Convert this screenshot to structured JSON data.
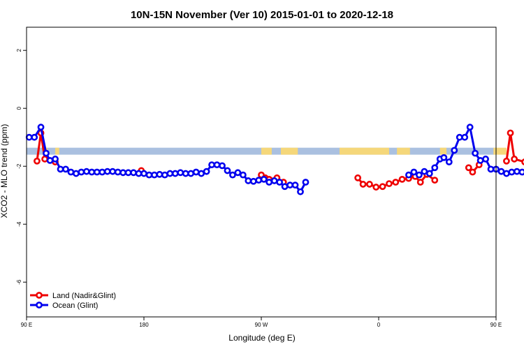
{
  "chart_data": {
    "type": "line",
    "title": "10N-15N November (Ver 10)   2015-01-01 to 2020-12-18",
    "xlabel": "Longitude (deg E)",
    "ylabel": "XCO2 - MLO trend (ppm)",
    "xlim": [
      90,
      450
    ],
    "ylim": [
      -7.2,
      2.8
    ],
    "x_ticks": [
      {
        "value": 90,
        "label": "90 E"
      },
      {
        "value": 180,
        "label": "180"
      },
      {
        "value": 270,
        "label": "90 W"
      },
      {
        "value": 360,
        "label": "0"
      },
      {
        "value": 450,
        "label": "90 E"
      },
      {
        "value": 540,
        "label": "180"
      }
    ],
    "y_ticks": [
      2,
      0,
      -2,
      -4,
      -6
    ],
    "colors": {
      "land": "#ee0000",
      "ocean": "#0000ee",
      "ocean_band": "#aac0e0",
      "land_band": "#f5d77a"
    },
    "series": [
      {
        "name": "Land (Nadir&Glint)",
        "color": "#ee0000",
        "segments": [
          [
            [
              98,
              -1.82
            ],
            [
              101,
              -0.85
            ],
            [
              104,
              -1.75
            ],
            [
              112,
              -1.85
            ]
          ],
          [
            [
              178,
              -2.15
            ]
          ],
          [
            [
              270,
              -2.3
            ],
            [
              273,
              -2.4
            ],
            [
              276,
              -2.45
            ],
            [
              282,
              -2.4
            ],
            [
              287,
              -2.55
            ]
          ],
          [
            [
              344,
              -2.4
            ],
            [
              348,
              -2.62
            ],
            [
              353,
              -2.62
            ],
            [
              358,
              -2.72
            ],
            [
              363,
              -2.7
            ],
            [
              368,
              -2.6
            ],
            [
              373,
              -2.55
            ],
            [
              378,
              -2.45
            ],
            [
              383,
              -2.42
            ],
            [
              388,
              -2.35
            ],
            [
              392,
              -2.55
            ],
            [
              397,
              -2.28
            ],
            [
              403,
              -2.48
            ]
          ],
          [
            [
              429,
              -2.05
            ],
            [
              432,
              -2.2
            ],
            [
              437,
              -1.95
            ]
          ],
          [
            [
              458,
              -1.82
            ],
            [
              461,
              -0.85
            ],
            [
              464,
              -1.75
            ],
            [
              472,
              -1.85
            ],
            [
              478,
              -2.12
            ]
          ]
        ]
      },
      {
        "name": "Ocean (Glint)",
        "color": "#0000ee",
        "segments": [
          [
            [
              92,
              -1.0
            ],
            [
              96,
              -1.0
            ],
            [
              101,
              -0.65
            ],
            [
              105,
              -1.55
            ],
            [
              108,
              -1.8
            ],
            [
              112,
              -1.75
            ],
            [
              116,
              -2.1
            ],
            [
              120,
              -2.1
            ],
            [
              124,
              -2.2
            ],
            [
              128,
              -2.25
            ],
            [
              132,
              -2.2
            ],
            [
              136,
              -2.18
            ],
            [
              140,
              -2.2
            ],
            [
              144,
              -2.2
            ],
            [
              148,
              -2.2
            ],
            [
              152,
              -2.18
            ],
            [
              156,
              -2.18
            ],
            [
              160,
              -2.2
            ],
            [
              164,
              -2.22
            ],
            [
              168,
              -2.22
            ],
            [
              172,
              -2.22
            ],
            [
              176,
              -2.25
            ],
            [
              180,
              -2.25
            ],
            [
              184,
              -2.3
            ],
            [
              188,
              -2.3
            ],
            [
              192,
              -2.28
            ],
            [
              196,
              -2.3
            ],
            [
              200,
              -2.25
            ],
            [
              204,
              -2.25
            ],
            [
              208,
              -2.22
            ],
            [
              212,
              -2.25
            ],
            [
              216,
              -2.25
            ],
            [
              220,
              -2.2
            ],
            [
              224,
              -2.25
            ],
            [
              228,
              -2.18
            ],
            [
              232,
              -1.95
            ],
            [
              236,
              -1.95
            ],
            [
              240,
              -1.98
            ],
            [
              244,
              -2.15
            ],
            [
              248,
              -2.3
            ],
            [
              252,
              -2.22
            ],
            [
              256,
              -2.3
            ],
            [
              260,
              -2.5
            ],
            [
              264,
              -2.52
            ],
            [
              268,
              -2.48
            ],
            [
              272,
              -2.45
            ],
            [
              276,
              -2.55
            ],
            [
              280,
              -2.5
            ],
            [
              284,
              -2.55
            ],
            [
              288,
              -2.7
            ],
            [
              292,
              -2.65
            ],
            [
              296,
              -2.65
            ],
            [
              300,
              -2.88
            ],
            [
              304,
              -2.55
            ]
          ],
          [
            [
              383,
              -2.3
            ],
            [
              387,
              -2.2
            ],
            [
              391,
              -2.3
            ],
            [
              395,
              -2.18
            ],
            [
              399,
              -2.25
            ],
            [
              403,
              -2.05
            ],
            [
              407,
              -1.75
            ],
            [
              410,
              -1.7
            ],
            [
              414,
              -1.85
            ],
            [
              418,
              -1.45
            ],
            [
              422,
              -1.0
            ],
            [
              426,
              -1.0
            ],
            [
              430,
              -0.65
            ],
            [
              434,
              -1.55
            ],
            [
              438,
              -1.8
            ],
            [
              442,
              -1.75
            ],
            [
              446,
              -2.1
            ],
            [
              450,
              -2.1
            ],
            [
              454,
              -2.18
            ],
            [
              458,
              -2.25
            ],
            [
              462,
              -2.2
            ],
            [
              466,
              -2.18
            ],
            [
              470,
              -2.2
            ],
            [
              474,
              -2.2
            ],
            [
              478,
              -2.2
            ],
            [
              482,
              -2.18
            ],
            [
              486,
              -2.18
            ],
            [
              490,
              -2.22
            ]
          ]
        ]
      }
    ],
    "legend": {
      "position": "bottom-left",
      "items": [
        {
          "label": "Land (Nadir&Glint)",
          "color": "#ee0000"
        },
        {
          "label": "Ocean (Glint)",
          "color": "#0000ee"
        }
      ]
    },
    "grid": false
  }
}
